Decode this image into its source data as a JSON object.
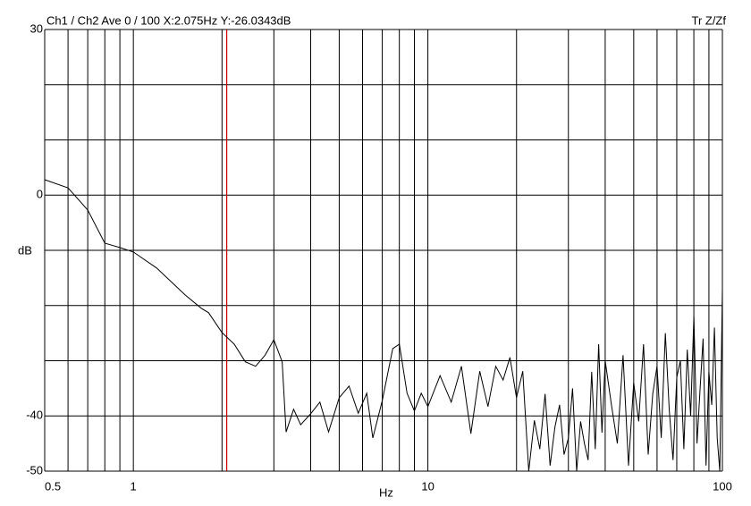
{
  "chart_data": {
    "type": "line",
    "header": "Ch1 / Ch2  Ave 0 / 100  X:2.075Hz  Y:-26.0343dB",
    "mode_label": "Tr Z/Zf",
    "x_label": "Hz",
    "y_label": "dB",
    "x_scale": "log",
    "xlim": [
      0.5,
      100
    ],
    "ylim": [
      -50,
      30
    ],
    "xticks": [
      0.5,
      1,
      10,
      100
    ],
    "yticks": [
      30,
      0,
      -40,
      -50
    ],
    "xgrid": [
      0.6,
      0.7,
      0.8,
      0.9,
      1,
      2,
      3,
      4,
      5,
      6,
      7,
      8,
      9,
      10,
      20,
      30,
      40,
      50,
      60,
      70,
      80,
      90,
      100
    ],
    "ygrid": [
      30,
      20,
      10,
      0,
      -10,
      -20,
      -30,
      -40,
      -50
    ],
    "cursor": {
      "x": 2.075,
      "color": "#cc0000"
    },
    "series": [
      {
        "color": "#000000",
        "x": [
          0.5,
          0.6,
          0.7,
          0.8,
          0.9,
          1.0,
          1.2,
          1.5,
          1.7,
          1.8,
          2.0,
          2.2,
          2.4,
          2.6,
          2.8,
          3.0,
          3.2,
          3.3,
          3.5,
          3.7,
          4.0,
          4.3,
          4.6,
          5.0,
          5.4,
          5.8,
          6.2,
          6.5,
          7.0,
          7.6,
          8.0,
          8.5,
          9.0,
          9.5,
          10,
          11,
          12,
          13,
          14,
          15,
          16,
          17,
          18,
          19,
          20,
          21,
          22,
          23,
          24,
          25,
          26,
          27,
          28,
          29,
          30,
          31,
          32,
          33,
          34,
          35,
          36,
          37,
          38,
          39,
          40,
          42,
          44,
          46,
          48,
          50,
          52,
          54,
          56,
          58,
          60,
          62,
          64,
          66,
          68,
          70,
          72,
          74,
          76,
          78,
          80,
          82,
          84,
          86,
          88,
          90,
          92,
          94,
          96,
          98,
          100
        ],
        "values": [
          2.8,
          1.3,
          -2.7,
          -8.7,
          -9.5,
          -10.3,
          -13.2,
          -18.1,
          -20.5,
          -21.3,
          -24.9,
          -27.0,
          -30.2,
          -31.0,
          -29.0,
          -26.2,
          -30.2,
          -42.9,
          -38.8,
          -41.6,
          -39.6,
          -37.5,
          -42.9,
          -36.7,
          -34.6,
          -39.5,
          -35.9,
          -44.0,
          -37.2,
          -27.8,
          -27.0,
          -35.9,
          -39.1,
          -35.9,
          -38.3,
          -32.7,
          -37.5,
          -31.0,
          -43.2,
          -31.9,
          -38.3,
          -31.0,
          -33.5,
          -29.4,
          -36.7,
          -31.9,
          -50.0,
          -40.8,
          -46.0,
          -36.0,
          -49.0,
          -42.0,
          -38.0,
          -47.0,
          -44.0,
          -35.0,
          -50.0,
          -41.0,
          -45.0,
          -48.0,
          -32.0,
          -46.0,
          -27.0,
          -43.0,
          -30.0,
          -38.0,
          -45.0,
          -29.0,
          -49.0,
          -34.0,
          -41.0,
          -27.0,
          -47.0,
          -36.0,
          -31.0,
          -44.0,
          -25.0,
          -39.0,
          -48.0,
          -33.0,
          -30.0,
          -46.0,
          -28.0,
          -40.0,
          -22.0,
          -45.0,
          -35.0,
          -26.0,
          -49.0,
          -32.0,
          -38.0,
          -24.0,
          -44.0,
          -50.0,
          -17.0
        ]
      }
    ]
  }
}
